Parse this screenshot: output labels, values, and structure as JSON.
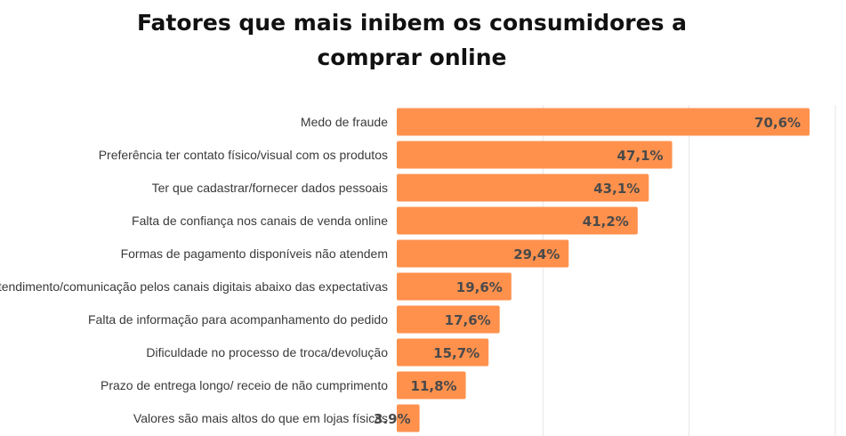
{
  "chart_data": {
    "type": "bar",
    "orientation": "horizontal",
    "title_lines": [
      "Fatores que mais inibem os consumidores a",
      "comprar online"
    ],
    "categories": [
      "Medo de fraude",
      "Preferência ter contato físico/visual com os produtos",
      "Ter que cadastrar/fornecer dados pessoais",
      "Falta de confiança nos canais de venda online",
      "Formas de pagamento disponíveis não atendem",
      "Atendimento/comunicação pelos canais digitais abaixo das expectativas",
      "Falta de informação para acompanhamento do pedido",
      "Dificuldade no processo de troca/devolução",
      "Prazo de entrega longo/ receio de não cumprimento",
      "Valores são mais altos do que em lojas físicas"
    ],
    "values": [
      70.6,
      47.1,
      43.1,
      41.2,
      29.4,
      19.6,
      17.6,
      15.7,
      11.8,
      3.9
    ],
    "value_labels": [
      "70,6%",
      "47,1%",
      "43,1%",
      "41,2%",
      "29,4%",
      "19,6%",
      "17,6%",
      "15,7%",
      "11,8%",
      "3.9%"
    ],
    "xlim": [
      0,
      75
    ],
    "grid": true,
    "gridlines_at": [
      25,
      50,
      75
    ],
    "bar_color": "#FF914D",
    "label_color": "#4A4A4A",
    "gridline_color": "#E6E6E6"
  }
}
